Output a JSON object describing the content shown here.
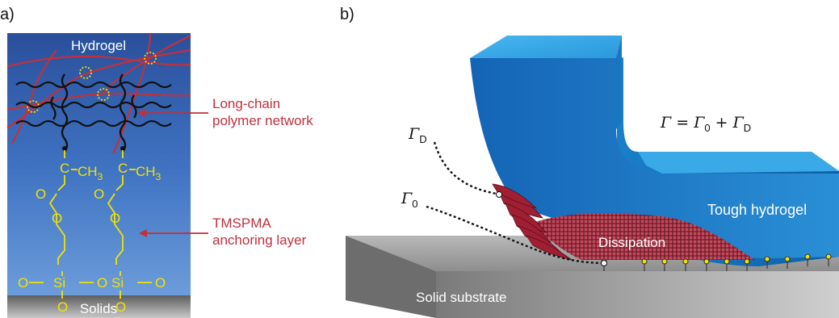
{
  "panel_a": {
    "label": "a)",
    "top_label": "Hydrogel",
    "bottom_label": "Solids",
    "annotation_network": [
      "Long-chain",
      "polymer network"
    ],
    "annotation_anchor": [
      "TMSPMA",
      "anchoring layer"
    ],
    "chem": {
      "c": "C",
      "ch3": "CH",
      "ch3_sub": "3",
      "o": "O",
      "si": "Si"
    }
  },
  "panel_b": {
    "label": "b)",
    "equation": {
      "gamma": "Γ",
      "eq": " = ",
      "plus": " + ",
      "sub0": "0",
      "subD": "D"
    },
    "gamma_D": {
      "symbol": "Γ",
      "sub": "D"
    },
    "gamma_0": {
      "symbol": "Γ",
      "sub": "0"
    },
    "hydrogel_label": "Tough hydrogel",
    "dissipation_label": "Dissipation",
    "substrate_label": "Solid substrate"
  },
  "colors": {
    "panel_a_bg_top": "#2b5aa8",
    "panel_a_bg_bottom": "#5a8fd6",
    "network_red": "#c0313c",
    "chem_yellow": "#f2e200",
    "hydrogel_blue": "#1a78c2",
    "dissipation_red": "#b32a3e",
    "substrate_gray": "#9a9a9a"
  }
}
